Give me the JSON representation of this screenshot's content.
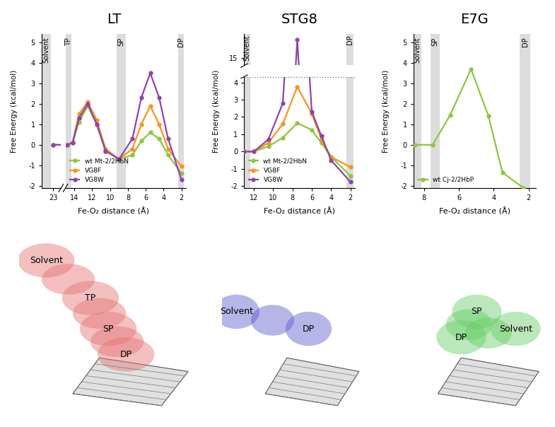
{
  "chart_data": [
    {
      "type": "line",
      "title": "LT",
      "x_label": "Fe-O₂ distance (Å)",
      "y_label": "Free Energy (kcal/mol)",
      "x": [
        23,
        14.8,
        14.2,
        13.5,
        12.5,
        11.5,
        10.5,
        9,
        7.5,
        6.5,
        5.5,
        4.5,
        3.5,
        2
      ],
      "xlim": [
        [
          24.5,
          22
        ],
        [
          15,
          1.5
        ]
      ],
      "xticks": [
        23,
        14,
        12,
        10,
        8,
        6,
        4,
        2
      ],
      "ylim": [
        -2.1,
        5.4
      ],
      "yticks": [
        -2,
        -1,
        0,
        1,
        2,
        3,
        4,
        5
      ],
      "legend": "lower left",
      "series": [
        {
          "name": "wt Mt-2/2HbN",
          "color": "#8cc63f",
          "marker": "o",
          "values": [
            0,
            0,
            0.1,
            1.1,
            1.9,
            1.0,
            -0.3,
            -0.7,
            -0.5,
            0.2,
            0.6,
            0.3,
            -0.5,
            -1.4
          ]
        },
        {
          "name": "VG8F",
          "color": "#f7941d",
          "marker": "o",
          "values": [
            0,
            0,
            0.15,
            1.5,
            2.1,
            1.2,
            -0.2,
            -0.7,
            -0.2,
            1.0,
            1.9,
            1.0,
            -0.2,
            -1.05
          ]
        },
        {
          "name": "VG8W",
          "color": "#8e44ad",
          "marker": "o",
          "values": [
            0,
            0,
            0.1,
            1.3,
            2.0,
            1.0,
            -0.3,
            -0.7,
            0.3,
            2.3,
            3.5,
            2.3,
            0.3,
            -1.7
          ]
        }
      ],
      "regions": [
        {
          "label": "Solvent",
          "range": [
            24.5,
            23.3
          ]
        },
        {
          "label": "TP",
          "range": [
            15,
            14.3
          ]
        },
        {
          "label": "SP",
          "range": [
            9.3,
            8.2
          ]
        },
        {
          "label": "DP",
          "range": [
            2.4,
            1.7
          ]
        }
      ],
      "structure": {
        "labels": [
          "Solvent",
          "TP",
          "SP",
          "DP"
        ],
        "color": "#e57373"
      }
    },
    {
      "type": "line",
      "title": "STG8",
      "x_label": "Fe-O₂ distance (Å)",
      "y_label": "Free Energy (kcal/mol)",
      "x": [
        13,
        12,
        10.5,
        9,
        7.5,
        6,
        5,
        4,
        2
      ],
      "xlim": [
        13,
        1.5
      ],
      "xticks": [
        12,
        10,
        8,
        6,
        4,
        2
      ],
      "ylim": [
        [
          -2.1,
          4.3
        ],
        [
          14.6,
          16.3
        ]
      ],
      "yticks": [
        -2,
        -1,
        0,
        1,
        2,
        3,
        4,
        15
      ],
      "legend": "lower left",
      "series": [
        {
          "name": "wt Mt-2/2HbN",
          "color": "#8cc63f",
          "marker": "o",
          "values": [
            0,
            0,
            0.3,
            0.8,
            1.65,
            1.25,
            0.5,
            -0.3,
            -1.4
          ]
        },
        {
          "name": "VG8F",
          "color": "#f7941d",
          "marker": "o",
          "values": [
            0,
            0,
            0.5,
            1.6,
            3.75,
            2.2,
            0.7,
            -0.3,
            -0.9
          ]
        },
        {
          "name": "VG8W",
          "color": "#8e44ad",
          "marker": "o",
          "values": [
            0,
            0,
            0.7,
            2.8,
            16.0,
            2.3,
            0.9,
            -0.5,
            -1.75
          ]
        }
      ],
      "regions": [
        {
          "label": "Solvent",
          "range": [
            13,
            12.4
          ]
        },
        {
          "label": "DP",
          "range": [
            2.4,
            1.7
          ]
        }
      ],
      "structure": {
        "labels": [
          "Solvent",
          "DP"
        ],
        "color": "#5c5ccc"
      }
    },
    {
      "type": "line",
      "title": "E7G",
      "x_label": "Fe-O₂ distance (Å)",
      "y_label": "Free Energy (kcal/mol)",
      "x": [
        8.5,
        7.5,
        6.5,
        5.3,
        4.3,
        3.5,
        2.3
      ],
      "xlim": [
        8.6,
        1.6
      ],
      "xticks": [
        8,
        6,
        4,
        2
      ],
      "ylim": [
        -2.1,
        5.4
      ],
      "yticks": [
        -2,
        -1,
        0,
        1,
        2,
        3,
        4,
        5
      ],
      "legend": "lower left",
      "series": [
        {
          "name": "wt Cj-2/2HbP",
          "color": "#8cc63f",
          "marker": "o",
          "values": [
            0,
            0,
            1.45,
            3.7,
            1.4,
            -1.35,
            -2.1
          ]
        }
      ],
      "regions": [
        {
          "label": "Solvent",
          "range": [
            8.6,
            8.15
          ]
        },
        {
          "label": "SP",
          "range": [
            7.6,
            7.1
          ]
        },
        {
          "label": "DP",
          "range": [
            2.5,
            1.9
          ]
        }
      ],
      "structure": {
        "labels": [
          "SP",
          "DP",
          "Solvent"
        ],
        "color": "#66cc66"
      }
    }
  ]
}
